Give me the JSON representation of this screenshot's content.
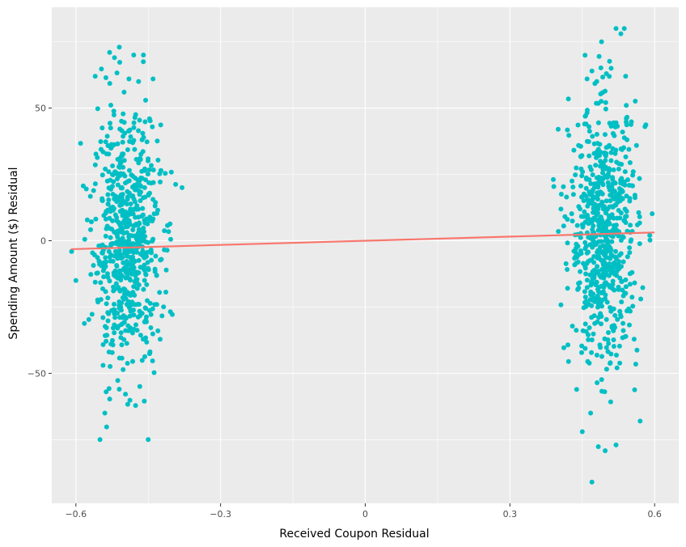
{
  "chart_data": {
    "type": "scatter",
    "title": "",
    "xlabel": "Received Coupon Residual",
    "ylabel": "Spending Amount ($) Residual",
    "xlim": [
      -0.65,
      0.65
    ],
    "ylim": [
      -99,
      88
    ],
    "x_ticks": [
      -0.6,
      -0.3,
      0,
      0.3,
      0.6
    ],
    "x_tick_labels": [
      "−0.6",
      "−0.3",
      "0",
      "0.3",
      "0.6"
    ],
    "y_ticks": [
      -50,
      0,
      50
    ],
    "y_tick_labels": [
      "−50",
      "0",
      "50"
    ],
    "grid": true,
    "legend": "none",
    "point_color": "#00BFC4",
    "line_color": "#F8766D",
    "panel_background": "#EBEBEB",
    "regression_line": {
      "x": [
        -0.61,
        0.6
      ],
      "y": [
        -3.2,
        3.1
      ]
    },
    "clusters": [
      {
        "x_center": -0.495,
        "x_spread": 0.035,
        "x_range": [
          -0.61,
          -0.38
        ],
        "y_mean": -1,
        "y_sd": 23,
        "y_range": [
          -76,
          74
        ],
        "n": 700
      },
      {
        "x_center": 0.495,
        "x_spread": 0.035,
        "x_range": [
          0.39,
          0.595
        ],
        "y_mean": 2,
        "y_sd": 24,
        "y_range": [
          -91,
          80
        ],
        "n": 700
      }
    ],
    "series": [
      {
        "x": [
          -0.51,
          -0.48,
          -0.53,
          -0.46,
          -0.52,
          -0.56,
          -0.44,
          -0.49,
          -0.47,
          -0.5,
          -0.55,
          -0.45,
          -0.38,
          -0.6,
          -0.43,
          -0.54
        ],
        "y": [
          73,
          70,
          71,
          70,
          69,
          62,
          61,
          61,
          60,
          56,
          -75,
          -75,
          20,
          -15,
          -34,
          -65
        ]
      },
      {
        "x": [
          0.52,
          0.53,
          0.49,
          0.51,
          0.47,
          0.54,
          0.48,
          0.46,
          0.5,
          0.59,
          0.4,
          0.58,
          0.47,
          0.52,
          0.45,
          0.57
        ],
        "y": [
          80,
          78,
          75,
          65,
          64,
          62,
          60,
          61,
          63,
          2,
          42,
          43,
          -91,
          -77,
          -72,
          -68
        ]
      }
    ]
  }
}
